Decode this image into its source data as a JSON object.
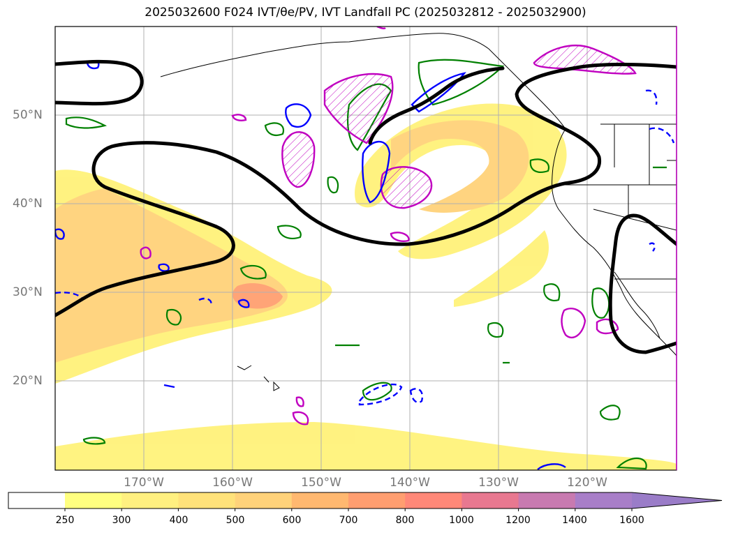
{
  "title": "2025032600 F024 IVT/θe/PV, IVT Landfall PC (2025032812 - 2025032900)",
  "lat_labels": [
    "50°N",
    "40°N",
    "30°N",
    "20°N"
  ],
  "lon_labels": [
    "170°W",
    "160°W",
    "150°W",
    "140°W",
    "130°W",
    "120°W"
  ],
  "colorbar": {
    "ticks": [
      "250",
      "300",
      "400",
      "500",
      "600",
      "700",
      "800",
      "1000",
      "1200",
      "1400",
      "1600"
    ],
    "colors": [
      "#ffffff",
      "#ffff80",
      "#fff080",
      "#ffe27a",
      "#ffd27a",
      "#ffb870",
      "#ff9e70",
      "#ff8878",
      "#e87890",
      "#c87ab0",
      "#a87ec8",
      "#9a7cc8"
    ],
    "extend": "max"
  },
  "map": {
    "lat_range": [
      "10°N",
      "60°N"
    ],
    "lon_range": [
      "180°W",
      "110°W"
    ],
    "grid": true,
    "contour_colors": {
      "ivt_pc": "#000000",
      "theta_e": "#008000",
      "pv": "#0000ff",
      "pv_highlight": "#c000c0"
    }
  }
}
